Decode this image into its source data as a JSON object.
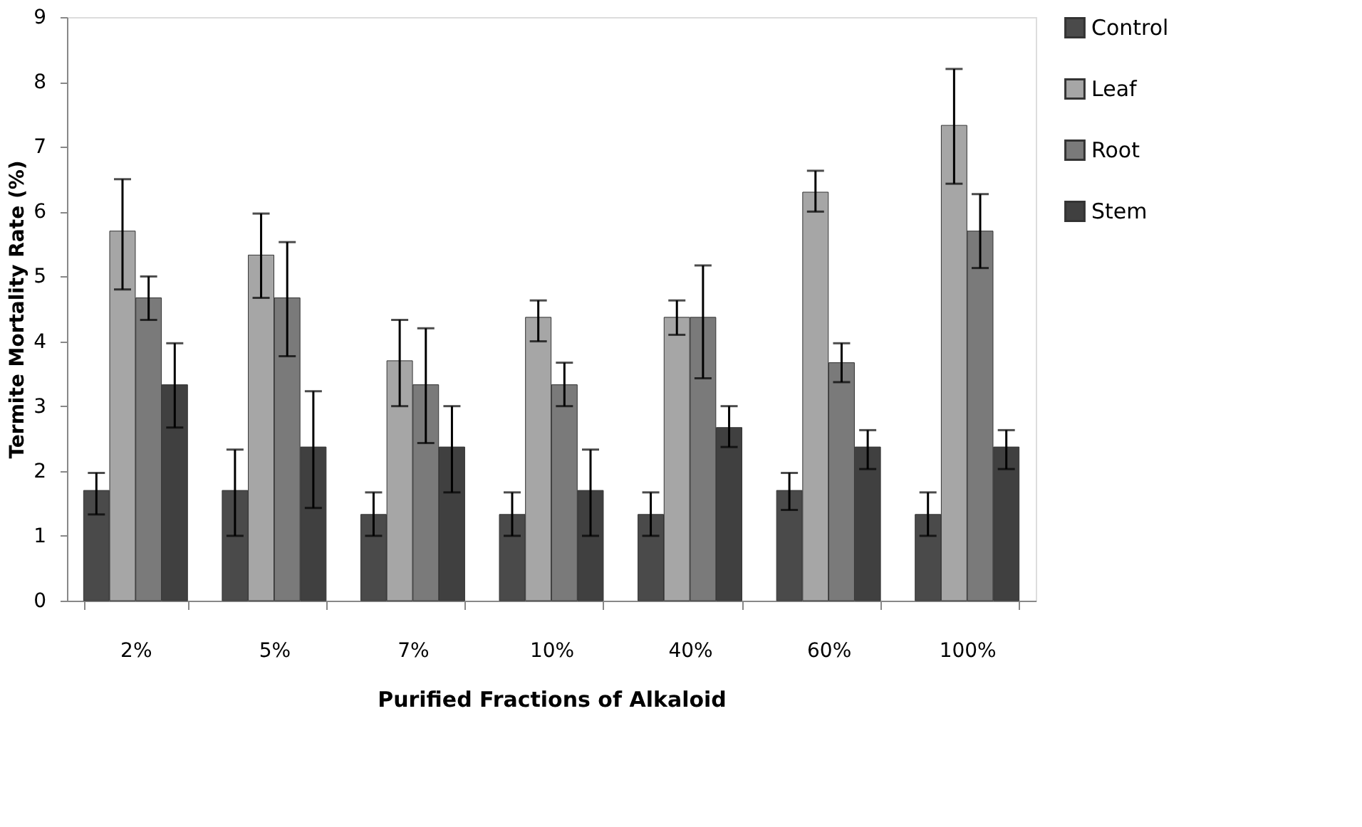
{
  "chart_data": {
    "type": "bar",
    "xlabel": "Purified Fractions of Alkaloid",
    "ylabel": "Termite Mortality Rate (%)",
    "categories": [
      "2%",
      "5%",
      "7%",
      "10%",
      "40%",
      "60%",
      "100%"
    ],
    "series": [
      {
        "name": "Control",
        "color": "#4a4a4a",
        "values": [
          1.7,
          1.7,
          1.33,
          1.33,
          1.33,
          1.7,
          1.33
        ],
        "errors": [
          [
            1.33,
            1.97
          ],
          [
            1.0,
            2.33
          ],
          [
            1.0,
            1.67
          ],
          [
            1.0,
            1.67
          ],
          [
            1.0,
            1.67
          ],
          [
            1.4,
            1.97
          ],
          [
            1.0,
            1.67
          ]
        ]
      },
      {
        "name": "Leaf",
        "color": "#a6a6a6",
        "values": [
          5.7,
          5.33,
          3.7,
          4.37,
          4.37,
          6.3,
          7.33
        ],
        "errors": [
          [
            4.8,
            6.5
          ],
          [
            4.67,
            5.97
          ],
          [
            3.0,
            4.33
          ],
          [
            4.0,
            4.63
          ],
          [
            4.1,
            4.63
          ],
          [
            6.0,
            6.63
          ],
          [
            6.43,
            8.2
          ]
        ]
      },
      {
        "name": "Root",
        "color": "#7a7a7a",
        "values": [
          4.67,
          4.67,
          3.33,
          3.33,
          4.37,
          3.67,
          5.7
        ],
        "errors": [
          [
            4.33,
            5.0
          ],
          [
            3.77,
            5.53
          ],
          [
            2.43,
            4.2
          ],
          [
            3.0,
            3.67
          ],
          [
            3.43,
            5.17
          ],
          [
            3.37,
            3.97
          ],
          [
            5.13,
            6.27
          ]
        ]
      },
      {
        "name": "Stem",
        "color": "#404040",
        "values": [
          3.33,
          2.37,
          2.37,
          1.7,
          2.67,
          2.37,
          2.37
        ],
        "errors": [
          [
            2.67,
            3.97
          ],
          [
            1.43,
            3.23
          ],
          [
            1.67,
            3.0
          ],
          [
            1.0,
            2.33
          ],
          [
            2.37,
            3.0
          ],
          [
            2.03,
            2.63
          ],
          [
            2.03,
            2.63
          ]
        ]
      }
    ],
    "ylim": [
      0,
      9
    ],
    "yticks": [
      0,
      1,
      2,
      3,
      4,
      5,
      6,
      7,
      8,
      9
    ],
    "grid": false,
    "legend": "right"
  }
}
